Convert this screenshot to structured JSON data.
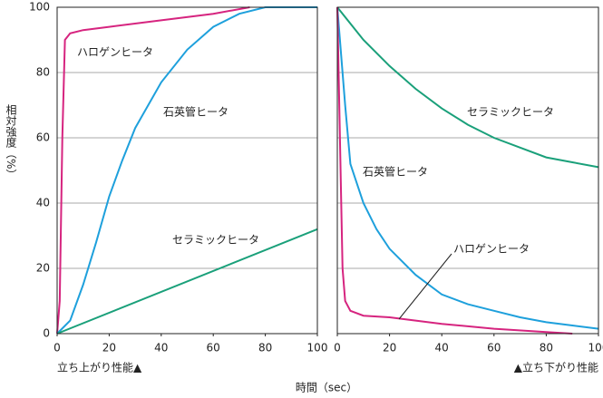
{
  "xlabel": "時間（sec）",
  "chart_data": [
    {
      "type": "line",
      "subtitle": "立ち上がり性能▲",
      "ylabel": "相対強度（%）",
      "xlim": [
        0,
        100
      ],
      "xticks": [
        0,
        20,
        40,
        60,
        80,
        100
      ],
      "ylim": [
        0,
        100
      ],
      "yticks": [
        0,
        20,
        40,
        60,
        80,
        100
      ],
      "grid": true,
      "series": [
        {
          "name": "ハロゲンヒータ",
          "color": "#d6247f",
          "x": [
            0,
            1,
            2,
            3,
            5,
            10,
            20,
            40,
            60,
            74
          ],
          "values": [
            0,
            10,
            60,
            90,
            92,
            93,
            94,
            96,
            98,
            100
          ]
        },
        {
          "name": "石英管ヒータ",
          "color": "#1ea0dc",
          "x": [
            0,
            5,
            10,
            15,
            20,
            25,
            30,
            35,
            40,
            50,
            60,
            70,
            80,
            100
          ],
          "values": [
            0,
            4,
            15,
            28,
            42,
            53,
            63,
            70,
            77,
            87,
            94,
            98,
            100,
            100
          ]
        },
        {
          "name": "セラミックヒータ",
          "color": "#1aa07a",
          "x": [
            0,
            100
          ],
          "values": [
            0,
            32
          ]
        }
      ]
    },
    {
      "type": "line",
      "subtitle": "▲立ち下がり性能",
      "xlim": [
        0,
        100
      ],
      "xticks": [
        0,
        20,
        40,
        60,
        80,
        100
      ],
      "ylim": [
        0,
        100
      ],
      "yticks": [
        0,
        20,
        40,
        60,
        80,
        100
      ],
      "grid": true,
      "series": [
        {
          "name": "セラミックヒータ",
          "color": "#1aa07a",
          "x": [
            0,
            10,
            20,
            30,
            40,
            50,
            60,
            70,
            80,
            90,
            100
          ],
          "values": [
            100,
            90,
            82,
            75,
            69,
            64,
            60,
            57,
            54,
            52.5,
            51
          ]
        },
        {
          "name": "石英管ヒータ",
          "color": "#1ea0dc",
          "x": [
            0,
            3,
            5,
            10,
            15,
            20,
            30,
            40,
            50,
            60,
            70,
            80,
            90,
            100
          ],
          "values": [
            100,
            70,
            52,
            40,
            32,
            26,
            18,
            12,
            9,
            7,
            5,
            3.5,
            2.5,
            1.5
          ]
        },
        {
          "name": "ハロゲンヒータ",
          "color": "#d6247f",
          "x": [
            0,
            1,
            2,
            3,
            5,
            10,
            20,
            40,
            60,
            80,
            90
          ],
          "values": [
            100,
            60,
            20,
            10,
            7,
            5.5,
            5,
            3,
            1.5,
            0.5,
            0
          ]
        }
      ]
    }
  ]
}
